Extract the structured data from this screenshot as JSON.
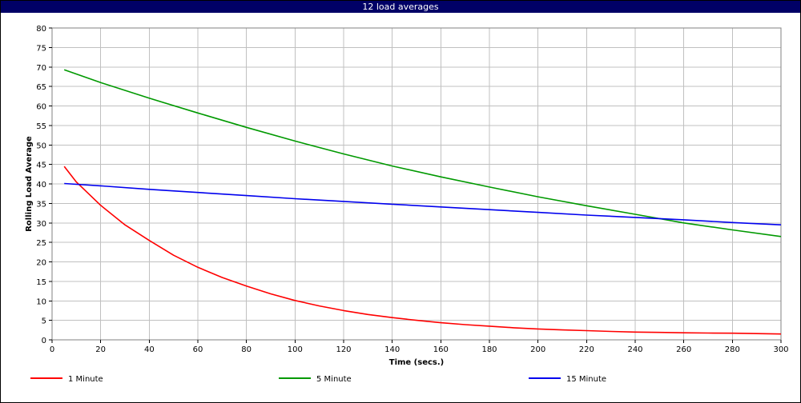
{
  "window": {
    "title": "12 load averages"
  },
  "chart_data": {
    "type": "line",
    "xlabel": "Time (secs.)",
    "ylabel": "Rolling Load Average",
    "xlim": [
      0,
      300
    ],
    "ylim": [
      0,
      80
    ],
    "x_ticks": [
      0,
      20,
      40,
      60,
      80,
      100,
      120,
      140,
      160,
      180,
      200,
      220,
      240,
      260,
      280,
      300
    ],
    "y_ticks": [
      0,
      5,
      10,
      15,
      20,
      25,
      30,
      35,
      40,
      45,
      50,
      55,
      60,
      65,
      70,
      75,
      80
    ],
    "grid": true,
    "legend_position": "bottom",
    "series": [
      {
        "name": "1 Minute",
        "color": "#ff0000",
        "x": [
          5,
          10,
          15,
          20,
          30,
          40,
          50,
          60,
          70,
          80,
          90,
          100,
          110,
          120,
          130,
          140,
          150,
          160,
          170,
          180,
          190,
          200,
          210,
          220,
          230,
          240,
          250,
          260,
          270,
          280,
          290,
          300
        ],
        "y": [
          44.5,
          40.5,
          37.5,
          34.5,
          29.5,
          25.5,
          21.7,
          18.6,
          16.0,
          13.8,
          11.8,
          10.1,
          8.7,
          7.5,
          6.5,
          5.7,
          5.0,
          4.4,
          3.9,
          3.5,
          3.1,
          2.8,
          2.55,
          2.35,
          2.15,
          2.0,
          1.9,
          1.8,
          1.75,
          1.7,
          1.6,
          1.5
        ]
      },
      {
        "name": "5 Minute",
        "color": "#009900",
        "x": [
          5,
          20,
          40,
          60,
          80,
          100,
          120,
          140,
          160,
          180,
          200,
          220,
          240,
          260,
          280,
          300
        ],
        "y": [
          69.3,
          66.0,
          62.0,
          58.2,
          54.5,
          51.0,
          47.7,
          44.6,
          41.8,
          39.2,
          36.7,
          34.4,
          32.2,
          30.0,
          28.2,
          26.5
        ]
      },
      {
        "name": "15 Minute",
        "color": "#0000ee",
        "x": [
          5,
          20,
          40,
          60,
          80,
          100,
          120,
          140,
          160,
          180,
          200,
          220,
          240,
          260,
          280,
          300
        ],
        "y": [
          40.1,
          39.5,
          38.6,
          37.8,
          37.0,
          36.2,
          35.5,
          34.8,
          34.1,
          33.4,
          32.7,
          32.0,
          31.4,
          30.8,
          30.1,
          29.5
        ]
      }
    ]
  }
}
